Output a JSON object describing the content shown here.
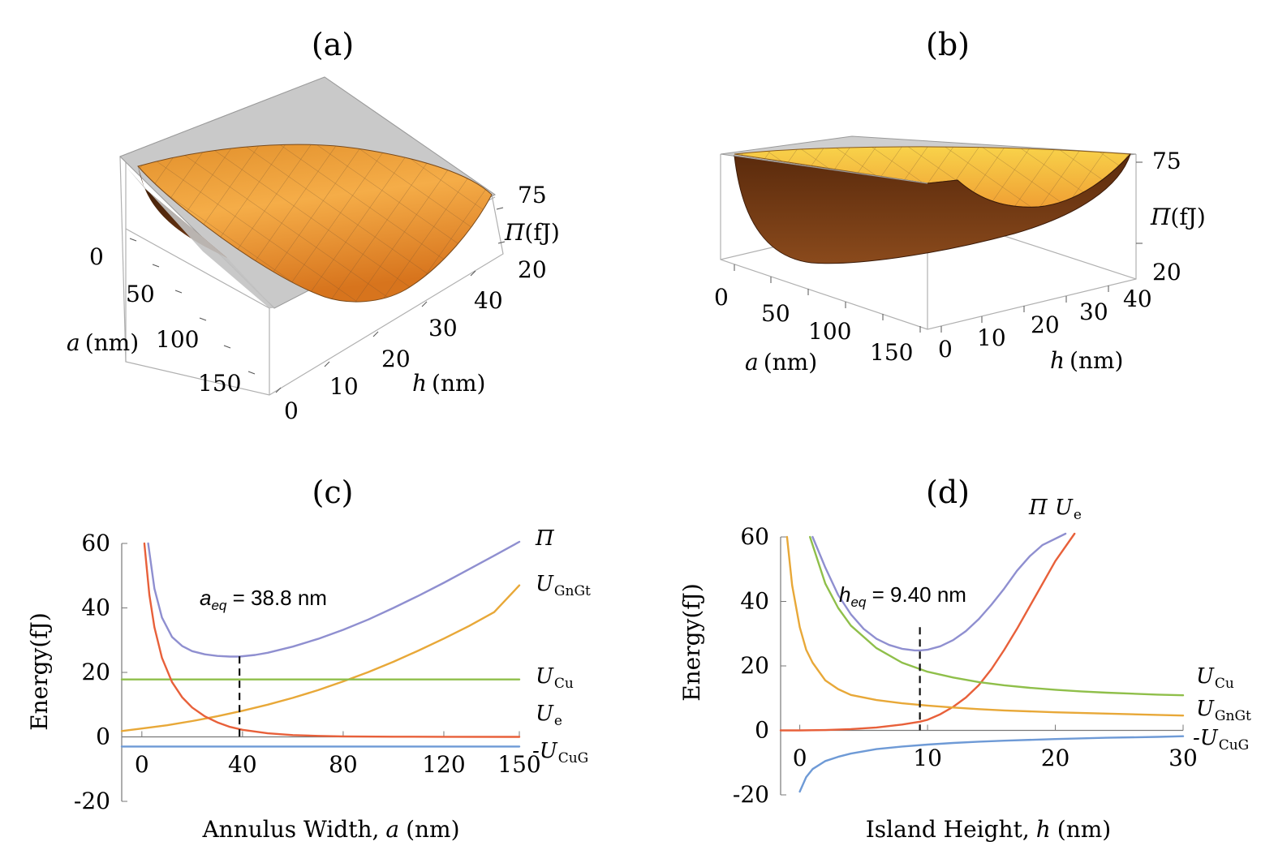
{
  "panels": {
    "a": {
      "title": "(a)",
      "z_label_sym": "Π",
      "z_label_unit": "(fJ)",
      "z_ticks": [
        "75",
        "20"
      ],
      "a_label_sym": "a",
      "a_label_unit": "(nm)",
      "a_ticks": [
        "0",
        "50",
        "100",
        "150"
      ],
      "h_label_sym": "h",
      "h_label_unit": "(nm)",
      "h_ticks": [
        "0",
        "10",
        "20",
        "30",
        "40"
      ]
    },
    "b": {
      "title": "(b)",
      "z_label_sym": "Π",
      "z_label_unit": "(fJ)",
      "z_ticks": [
        "75",
        "20"
      ],
      "a_label_sym": "a",
      "a_label_unit": "(nm)",
      "a_ticks": [
        "0",
        "50",
        "100",
        "150"
      ],
      "h_label_sym": "h",
      "h_label_unit": "(nm)",
      "h_ticks": [
        "0",
        "10",
        "20",
        "30",
        "40"
      ]
    }
  },
  "colors": {
    "Pi": "#8f8fd0",
    "U_GnGt": "#e8a838",
    "U_Cu": "#8fbf4a",
    "U_e": "#e8603a",
    "U_CuG": "#6e9ad6",
    "surface_light": "#f5b04a",
    "surface_dark": "#6a3512",
    "plane": "#c8c8c8"
  },
  "chart_data": [
    {
      "id": "c",
      "type": "line",
      "title": "(c)",
      "xlabel": "Annulus Width, a (nm)",
      "xlabel_prefix": "Annulus Width,",
      "xlabel_sym": "a",
      "xlabel_unit": "(nm)",
      "ylabel": "Energy(fJ)",
      "xlim": [
        -8,
        150
      ],
      "ylim": [
        -20,
        60
      ],
      "xticks": [
        0,
        40,
        80,
        120,
        150
      ],
      "yticks": [
        -20,
        0,
        20,
        40,
        60
      ],
      "annotation": {
        "sym": "a",
        "sub": "eq",
        "text": " = 38.8 nm",
        "x": 38.8,
        "y_from": 25,
        "y_to": 0
      },
      "series": [
        {
          "name": "Π",
          "sym": "Π",
          "sub": "",
          "color": "#8f8fd0",
          "x": [
            2.5,
            5,
            8,
            12,
            16,
            20,
            25,
            30,
            35,
            38.8,
            45,
            50,
            60,
            70,
            80,
            90,
            100,
            110,
            120,
            130,
            140,
            150
          ],
          "y": [
            60,
            46,
            37,
            31,
            28.2,
            26.6,
            25.6,
            25.1,
            24.9,
            24.9,
            25.4,
            26.1,
            28,
            30.4,
            33.2,
            36.4,
            40,
            43.8,
            47.8,
            52,
            56.2,
            60.5
          ]
        },
        {
          "name": "U_GnGt",
          "sym": "U",
          "sub": "GnGt",
          "color": "#e8a838",
          "x": [
            -8,
            0,
            10,
            20,
            30,
            40,
            50,
            60,
            70,
            80,
            90,
            100,
            110,
            120,
            130,
            140,
            150
          ],
          "y": [
            1.8,
            2.6,
            3.6,
            4.9,
            6.4,
            8.1,
            10,
            12.1,
            14.5,
            17.2,
            20.1,
            23.3,
            26.8,
            30.5,
            34.4,
            38.7,
            47
          ]
        },
        {
          "name": "U_Cu",
          "sym": "U",
          "sub": "Cu",
          "color": "#8fbf4a",
          "x": [
            -8,
            150
          ],
          "y": [
            17.8,
            17.8
          ]
        },
        {
          "name": "U_e",
          "sym": "U",
          "sub": "e",
          "color": "#e8603a",
          "x": [
            1,
            3,
            5,
            8,
            12,
            16,
            20,
            25,
            30,
            35,
            40,
            50,
            60,
            70,
            80,
            100,
            120,
            150
          ],
          "y": [
            60,
            44,
            34,
            24.5,
            17,
            12.3,
            9.1,
            6.4,
            4.5,
            3.1,
            2.2,
            1.1,
            0.55,
            0.3,
            0.15,
            0.05,
            0.02,
            0.0
          ]
        },
        {
          "name": "-U_CuG",
          "sym": "-U",
          "sub": "CuG",
          "color": "#6e9ad6",
          "x": [
            -8,
            150
          ],
          "y": [
            -3,
            -3
          ]
        }
      ]
    },
    {
      "id": "d",
      "type": "line",
      "title": "(d)",
      "xlabel": "Island Height, h (nm)",
      "xlabel_prefix": "Island Height,",
      "xlabel_sym": "h",
      "xlabel_unit": "(nm)",
      "ylabel": "Energy(fJ)",
      "xlim": [
        -1.5,
        30
      ],
      "ylim": [
        -20,
        60
      ],
      "xticks": [
        0,
        10,
        20,
        30
      ],
      "yticks": [
        -20,
        0,
        20,
        40,
        60
      ],
      "annotation": {
        "sym": "h",
        "sub": "eq",
        "text": " = 9.40 nm",
        "x": 9.4,
        "y_from": 32,
        "y_to": 0
      },
      "series": [
        {
          "name": "Π",
          "sym": "Π",
          "sub": "",
          "color": "#8f8fd0",
          "x": [
            1,
            2,
            3,
            4,
            5,
            6,
            7,
            8,
            9,
            9.4,
            10,
            11,
            12,
            13,
            14,
            15,
            16,
            17,
            18,
            19,
            20.8
          ],
          "y": [
            60,
            50.5,
            42,
            36,
            31.5,
            28.4,
            26.5,
            25.3,
            24.8,
            24.8,
            25,
            26.1,
            28,
            30.8,
            34.5,
            39,
            44,
            49.5,
            54,
            57.5,
            61
          ]
        },
        {
          "name": "U_e",
          "sym": "U",
          "sub": "e",
          "color": "#e8603a",
          "x": [
            -1.5,
            0,
            2,
            4,
            6,
            8,
            9.4,
            10,
            11,
            12,
            13,
            14,
            15,
            16,
            17,
            18,
            19,
            20,
            21.5
          ],
          "y": [
            0,
            0,
            0.1,
            0.4,
            0.9,
            1.8,
            2.7,
            3.3,
            5,
            7.3,
            10.2,
            14,
            19,
            25,
            31.5,
            38.5,
            45.5,
            52.5,
            61
          ]
        },
        {
          "name": "U_Cu",
          "sym": "U",
          "sub": "Cu",
          "color": "#8fbf4a",
          "x": [
            0.8,
            2,
            3,
            4,
            6,
            8,
            10,
            12,
            14,
            16,
            18,
            20,
            22,
            24,
            26,
            28,
            30
          ],
          "y": [
            60,
            45.5,
            38,
            32.5,
            25.5,
            21,
            18.2,
            16.4,
            15,
            14,
            13.2,
            12.6,
            12.1,
            11.7,
            11.4,
            11.1,
            10.9
          ]
        },
        {
          "name": "U_GnGt",
          "sym": "U",
          "sub": "GnGt",
          "color": "#e8a838",
          "x": [
            -1.0,
            -0.6,
            0,
            0.5,
            1,
            2,
            3,
            4,
            6,
            8,
            10,
            12,
            14,
            16,
            20,
            24,
            28,
            30
          ],
          "y": [
            60,
            45,
            32,
            25,
            21,
            15.5,
            12.8,
            11,
            9.4,
            8.4,
            7.7,
            7.1,
            6.6,
            6.2,
            5.6,
            5.2,
            4.8,
            4.6
          ]
        },
        {
          "name": "-U_CuG",
          "sym": "-U",
          "sub": "CuG",
          "color": "#6e9ad6",
          "x": [
            0,
            0.5,
            1,
            2,
            3,
            4,
            6,
            8,
            10,
            12,
            14,
            16,
            20,
            24,
            28,
            30
          ],
          "y": [
            -19,
            -14.5,
            -12,
            -9.5,
            -8.2,
            -7.2,
            -5.8,
            -5,
            -4.4,
            -3.9,
            -3.5,
            -3.2,
            -2.7,
            -2.3,
            -2,
            -1.8
          ]
        }
      ]
    }
  ]
}
